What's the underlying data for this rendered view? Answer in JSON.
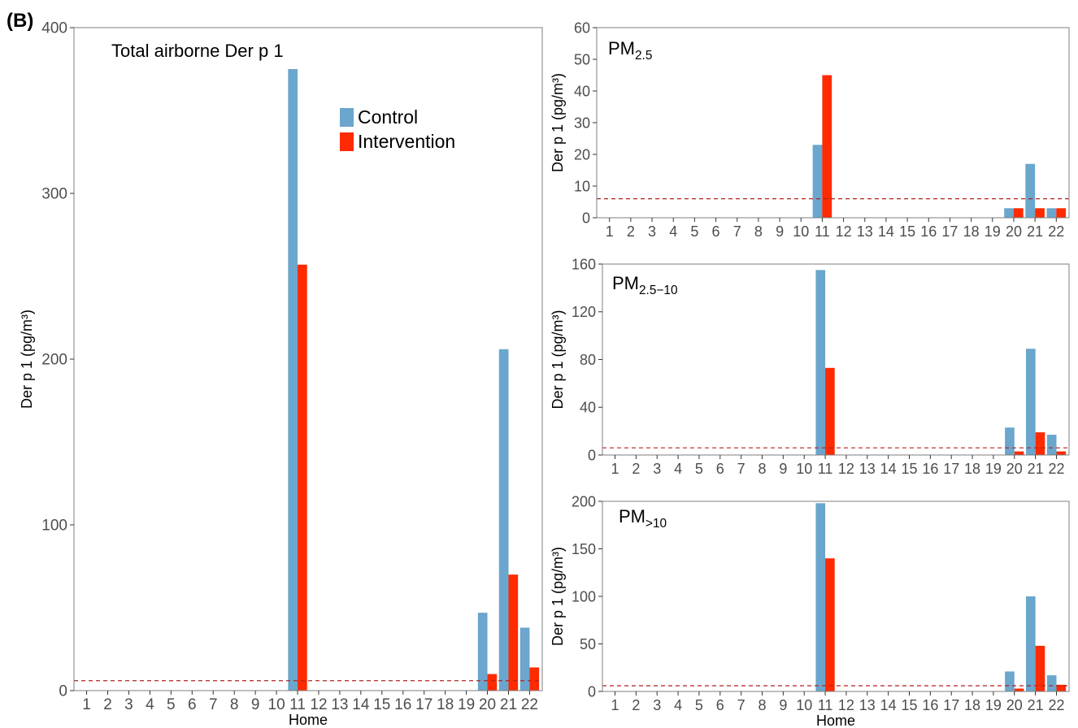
{
  "figure_label": "(B)",
  "colors": {
    "control": "#6aa6cd",
    "intervention": "#ff2a00",
    "threshold": "#b22222",
    "frame": "#7f7f7f"
  },
  "legend": {
    "control": "Control",
    "intervention": "Intervention"
  },
  "chart_data": [
    {
      "type": "bar",
      "title": "Total airborne Der p 1",
      "xlabel": "Home",
      "ylabel": "Der p 1 (pg/m³)",
      "ylim": [
        0,
        400
      ],
      "yticks": [
        0,
        100,
        200,
        300,
        400
      ],
      "detection_limit": 6,
      "categories": [
        "1",
        "2",
        "3",
        "4",
        "5",
        "6",
        "7",
        "8",
        "9",
        "10",
        "11",
        "12",
        "13",
        "14",
        "15",
        "16",
        "17",
        "18",
        "19",
        "20",
        "21",
        "22"
      ],
      "series": [
        {
          "name": "Control",
          "values": [
            0,
            0,
            0,
            0,
            0,
            0,
            0,
            0,
            0,
            0,
            375,
            0,
            0,
            0,
            0,
            0,
            0,
            0,
            0,
            47,
            206,
            38
          ]
        },
        {
          "name": "Intervention",
          "values": [
            0,
            0,
            0,
            0,
            0,
            0,
            0,
            0,
            0,
            0,
            257,
            0,
            0,
            0,
            0,
            0,
            0,
            0,
            0,
            10,
            70,
            14
          ]
        }
      ]
    },
    {
      "type": "bar",
      "title": "PM",
      "title_sub": "2.5",
      "xlabel": "",
      "ylabel": "Der p 1 (pg/m³)",
      "ylim": [
        0,
        60
      ],
      "yticks": [
        0,
        10,
        20,
        30,
        40,
        50,
        60
      ],
      "detection_limit": 6,
      "categories": [
        "1",
        "2",
        "3",
        "4",
        "5",
        "6",
        "7",
        "8",
        "9",
        "10",
        "11",
        "12",
        "13",
        "14",
        "15",
        "16",
        "17",
        "18",
        "19",
        "20",
        "21",
        "22"
      ],
      "series": [
        {
          "name": "Control",
          "values": [
            0,
            0,
            0,
            0,
            0,
            0,
            0,
            0,
            0,
            0,
            23,
            0,
            0,
            0,
            0,
            0,
            0,
            0,
            0,
            3,
            17,
            3
          ]
        },
        {
          "name": "Intervention",
          "values": [
            0,
            0,
            0,
            0,
            0,
            0,
            0,
            0,
            0,
            0,
            45,
            0,
            0,
            0,
            0,
            0,
            0,
            0,
            0,
            3,
            3,
            3
          ]
        }
      ]
    },
    {
      "type": "bar",
      "title": "PM",
      "title_sub": "2.5−10",
      "xlabel": "",
      "ylabel": "Der p 1 (pg/m³)",
      "ylim": [
        0,
        160
      ],
      "yticks": [
        0,
        40,
        80,
        120,
        160
      ],
      "detection_limit": 6,
      "categories": [
        "1",
        "2",
        "3",
        "4",
        "5",
        "6",
        "7",
        "8",
        "9",
        "10",
        "11",
        "12",
        "13",
        "14",
        "15",
        "16",
        "17",
        "18",
        "19",
        "20",
        "21",
        "22"
      ],
      "series": [
        {
          "name": "Control",
          "values": [
            0,
            0,
            0,
            0,
            0,
            0,
            0,
            0,
            0,
            0,
            155,
            0,
            0,
            0,
            0,
            0,
            0,
            0,
            0,
            23,
            89,
            17
          ]
        },
        {
          "name": "Intervention",
          "values": [
            0,
            0,
            0,
            0,
            0,
            0,
            0,
            0,
            0,
            0,
            73,
            0,
            0,
            0,
            0,
            0,
            0,
            0,
            0,
            3,
            19,
            3
          ]
        }
      ]
    },
    {
      "type": "bar",
      "title": "PM",
      "title_sub": ">10",
      "xlabel": "Home",
      "ylabel": "Der p 1 (pg/m³)",
      "ylim": [
        0,
        200
      ],
      "yticks": [
        0,
        50,
        100,
        150,
        200
      ],
      "detection_limit": 6,
      "categories": [
        "1",
        "2",
        "3",
        "4",
        "5",
        "6",
        "7",
        "8",
        "9",
        "10",
        "11",
        "12",
        "13",
        "14",
        "15",
        "16",
        "17",
        "18",
        "19",
        "20",
        "21",
        "22"
      ],
      "series": [
        {
          "name": "Control",
          "values": [
            0,
            0,
            0,
            0,
            0,
            0,
            0,
            0,
            0,
            0,
            198,
            0,
            0,
            0,
            0,
            0,
            0,
            0,
            0,
            21,
            100,
            17
          ]
        },
        {
          "name": "Intervention",
          "values": [
            0,
            0,
            0,
            0,
            0,
            0,
            0,
            0,
            0,
            0,
            140,
            0,
            0,
            0,
            0,
            0,
            0,
            0,
            0,
            3,
            48,
            7
          ]
        }
      ]
    }
  ]
}
